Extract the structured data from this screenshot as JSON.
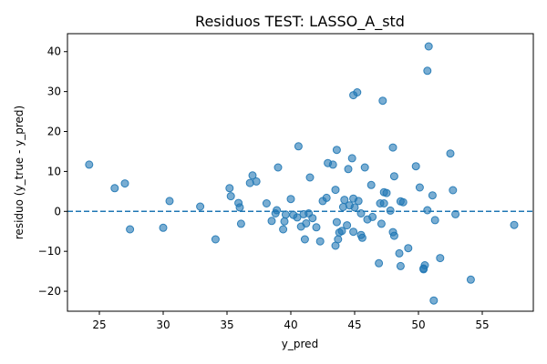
{
  "chart_data": {
    "type": "scatter",
    "title": "Residuos TEST: LASSO_A_std",
    "xlabel": "y_pred",
    "ylabel": "residuo (y_true - y_pred)",
    "xlim": [
      22.5,
      59
    ],
    "ylim": [
      -25,
      44.5
    ],
    "xticks": [
      25,
      30,
      35,
      40,
      45,
      50,
      55
    ],
    "yticks": [
      -20,
      -10,
      0,
      10,
      20,
      30,
      40
    ],
    "grid": false,
    "reference_line": {
      "y": 0,
      "style": "dashed",
      "color": "#1f77b4"
    },
    "point_color": "#1f77b4",
    "points": [
      [
        24.2,
        11.7
      ],
      [
        26.2,
        5.8
      ],
      [
        27.0,
        7.0
      ],
      [
        27.4,
        -4.5
      ],
      [
        30.0,
        -4.1
      ],
      [
        30.5,
        2.6
      ],
      [
        32.9,
        1.2
      ],
      [
        34.1,
        -7.0
      ],
      [
        35.2,
        5.8
      ],
      [
        35.3,
        3.8
      ],
      [
        35.9,
        2.1
      ],
      [
        36.0,
        1.0
      ],
      [
        36.1,
        -3.1
      ],
      [
        36.8,
        7.1
      ],
      [
        37.0,
        9.0
      ],
      [
        37.3,
        7.5
      ],
      [
        38.1,
        2.0
      ],
      [
        38.5,
        -2.4
      ],
      [
        38.8,
        -0.5
      ],
      [
        38.9,
        0.3
      ],
      [
        39.0,
        11.0
      ],
      [
        39.4,
        -4.5
      ],
      [
        39.5,
        -2.5
      ],
      [
        39.6,
        -0.8
      ],
      [
        40.0,
        3.1
      ],
      [
        40.2,
        -0.9
      ],
      [
        40.5,
        -1.5
      ],
      [
        40.6,
        16.3
      ],
      [
        40.8,
        -3.8
      ],
      [
        41.0,
        -0.7
      ],
      [
        41.1,
        -7.0
      ],
      [
        41.2,
        -3.0
      ],
      [
        41.4,
        -0.5
      ],
      [
        41.5,
        8.5
      ],
      [
        41.7,
        -1.7
      ],
      [
        42.0,
        -4.0
      ],
      [
        42.3,
        -7.5
      ],
      [
        42.5,
        2.6
      ],
      [
        42.8,
        3.4
      ],
      [
        42.9,
        12.1
      ],
      [
        43.3,
        11.7
      ],
      [
        43.5,
        -8.6
      ],
      [
        43.5,
        5.4
      ],
      [
        43.6,
        15.4
      ],
      [
        43.6,
        -2.7
      ],
      [
        43.7,
        -7.0
      ],
      [
        43.8,
        -5.3
      ],
      [
        44.0,
        -4.9
      ],
      [
        44.1,
        1.1
      ],
      [
        44.2,
        2.9
      ],
      [
        44.4,
        -3.5
      ],
      [
        44.5,
        10.6
      ],
      [
        44.6,
        1.5
      ],
      [
        44.8,
        13.3
      ],
      [
        44.9,
        3.2
      ],
      [
        44.9,
        -5.1
      ],
      [
        44.9,
        29.1
      ],
      [
        45.0,
        1.0
      ],
      [
        45.2,
        29.8
      ],
      [
        45.3,
        2.6
      ],
      [
        45.5,
        -0.5
      ],
      [
        45.5,
        -5.9
      ],
      [
        45.6,
        -6.6
      ],
      [
        45.8,
        11.0
      ],
      [
        46.0,
        -2.0
      ],
      [
        46.3,
        6.6
      ],
      [
        46.4,
        -1.4
      ],
      [
        46.9,
        -13.0
      ],
      [
        47.0,
        2.0
      ],
      [
        47.1,
        -3.1
      ],
      [
        47.2,
        27.7
      ],
      [
        47.3,
        2.0
      ],
      [
        47.3,
        4.8
      ],
      [
        47.5,
        4.6
      ],
      [
        47.8,
        0.2
      ],
      [
        48.0,
        -5.2
      ],
      [
        48.0,
        16.0
      ],
      [
        48.1,
        -6.1
      ],
      [
        48.1,
        8.8
      ],
      [
        48.5,
        -10.5
      ],
      [
        48.6,
        2.5
      ],
      [
        48.6,
        -13.7
      ],
      [
        48.8,
        2.3
      ],
      [
        49.2,
        -9.2
      ],
      [
        49.8,
        11.3
      ],
      [
        50.1,
        6.0
      ],
      [
        50.4,
        -14.3
      ],
      [
        50.4,
        -14.5
      ],
      [
        50.5,
        -13.5
      ],
      [
        50.7,
        0.3
      ],
      [
        50.7,
        35.2
      ],
      [
        50.8,
        41.3
      ],
      [
        51.1,
        4.0
      ],
      [
        51.2,
        -22.3
      ],
      [
        51.3,
        -2.2
      ],
      [
        51.7,
        -11.7
      ],
      [
        52.5,
        14.5
      ],
      [
        52.7,
        5.3
      ],
      [
        52.9,
        -0.7
      ],
      [
        54.1,
        -17.1
      ],
      [
        57.5,
        -3.4
      ]
    ]
  }
}
